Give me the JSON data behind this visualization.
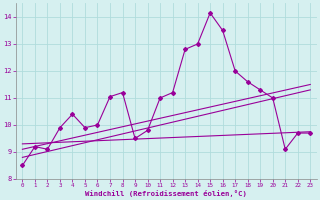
{
  "title": "",
  "xlabel": "Windchill (Refroidissement éolien,°C)",
  "background_color": "#d6f0f0",
  "grid_color": "#b0dcdc",
  "line_color": "#990099",
  "xlim": [
    -0.5,
    23.5
  ],
  "ylim": [
    8,
    14.5
  ],
  "yticks": [
    8,
    9,
    10,
    11,
    12,
    13,
    14
  ],
  "xticks": [
    0,
    1,
    2,
    3,
    4,
    5,
    6,
    7,
    8,
    9,
    10,
    11,
    12,
    13,
    14,
    15,
    16,
    17,
    18,
    19,
    20,
    21,
    22,
    23
  ],
  "series1_x": [
    0,
    1,
    2,
    3,
    4,
    5,
    6,
    7,
    8,
    9,
    10,
    11,
    12,
    13,
    14,
    15,
    16,
    17,
    18,
    19,
    20,
    21,
    22,
    23
  ],
  "series1_y": [
    8.5,
    9.2,
    9.1,
    9.9,
    10.4,
    9.9,
    10.0,
    11.05,
    11.2,
    9.5,
    9.8,
    11.0,
    11.2,
    12.8,
    13.0,
    14.15,
    13.5,
    12.0,
    11.6,
    11.3,
    11.0,
    9.1,
    9.7,
    9.7
  ],
  "series2_x": [
    0,
    23
  ],
  "series2_y": [
    8.8,
    11.3
  ],
  "series3_x": [
    0,
    23
  ],
  "series3_y": [
    9.1,
    11.5
  ],
  "series4_x": [
    0,
    23
  ],
  "series4_y": [
    9.3,
    9.75
  ]
}
